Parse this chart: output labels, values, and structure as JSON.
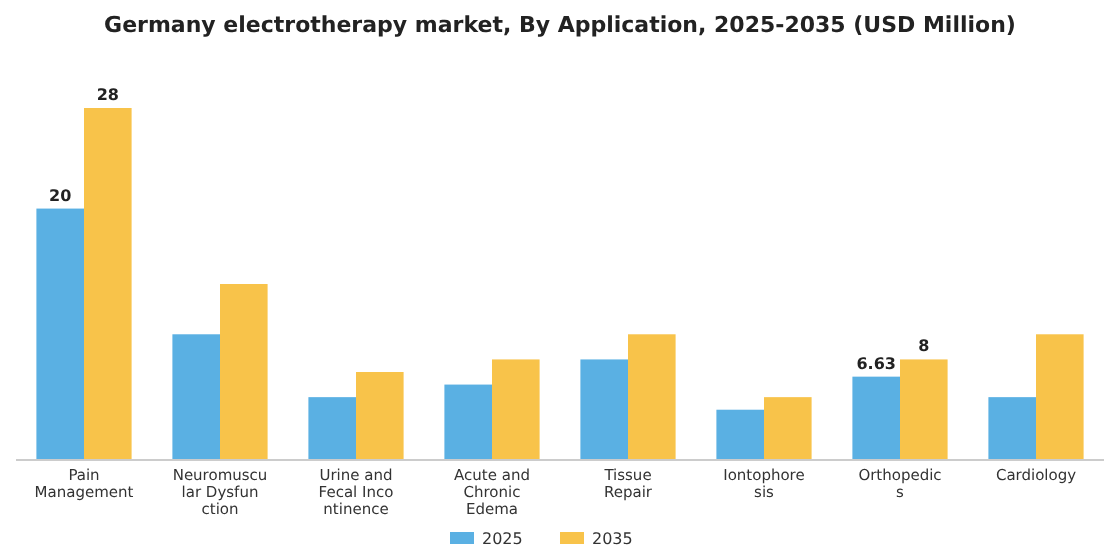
{
  "chart_data": {
    "type": "bar",
    "title": "Germany electrotherapy market, By Application, 2025-2035 (USD Million)",
    "categories": [
      "Pain\nManagement",
      "Neuromuscu\nlar Dysfun\nction",
      "Urine and\nFecal Inco\nntinence",
      "Acute and\nChronic\nEdema",
      "Tissue\nRepair",
      "Iontophore\nsis",
      "Orthopedic\ns",
      "Cardiology"
    ],
    "series": [
      {
        "name": "2025",
        "color": "#5ab0e3",
        "values": [
          20,
          10,
          5,
          6,
          8,
          4,
          6.63,
          5
        ],
        "value_labels": [
          "20",
          null,
          null,
          null,
          null,
          null,
          "6.63",
          null
        ]
      },
      {
        "name": "2035",
        "color": "#f8c34a",
        "values": [
          28,
          14,
          7,
          8,
          10,
          5,
          8,
          10
        ],
        "value_labels": [
          "28",
          null,
          null,
          null,
          null,
          null,
          "8",
          null
        ]
      }
    ],
    "legend": "bottom"
  }
}
